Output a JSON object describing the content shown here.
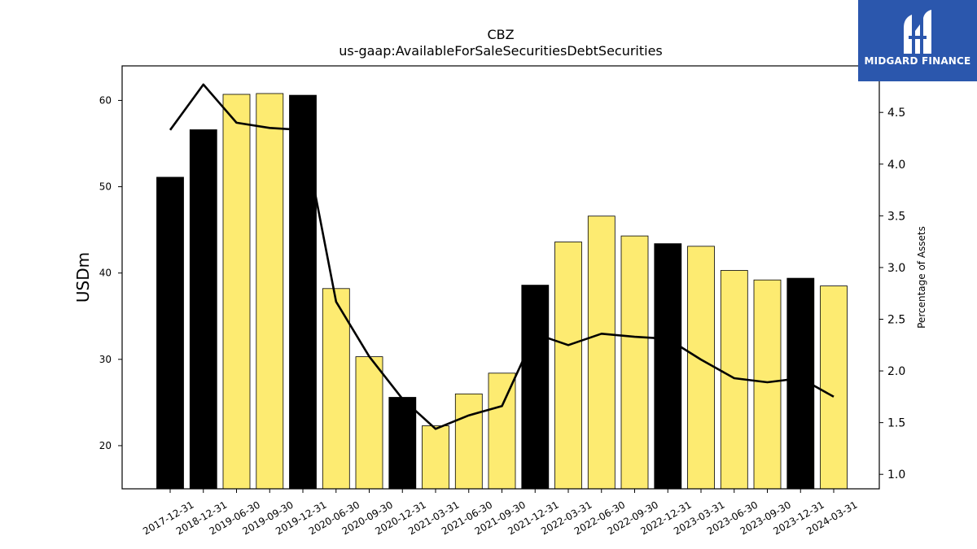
{
  "chart_data": {
    "type": "bar",
    "title": "CBZ",
    "subtitle": "us-gaap:AvailableForSaleSecuritiesDebtSecurities",
    "ylabel": "USDm",
    "y2label": "Percentage of Assets",
    "ylim": [
      15,
      64
    ],
    "y2lim": [
      0.86,
      4.95
    ],
    "yticks": [
      20,
      30,
      40,
      50,
      60
    ],
    "y2ticks": [
      1.0,
      1.5,
      2.0,
      2.5,
      3.0,
      3.5,
      4.0,
      4.5
    ],
    "categories": [
      "2017-12-31",
      "2018-12-31",
      "2019-06-30",
      "2019-09-30",
      "2019-12-31",
      "2020-06-30",
      "2020-09-30",
      "2020-12-31",
      "2021-03-31",
      "2021-06-30",
      "2021-09-30",
      "2021-12-31",
      "2022-03-31",
      "2022-06-30",
      "2022-09-30",
      "2022-12-31",
      "2023-03-31",
      "2023-06-30",
      "2023-09-30",
      "2023-12-31",
      "2024-03-31"
    ],
    "series": [
      {
        "type": "bar",
        "axis": "left",
        "values": [
          51.1,
          56.6,
          60.7,
          60.8,
          60.6,
          38.2,
          30.3,
          25.6,
          22.3,
          26.0,
          28.4,
          38.6,
          43.6,
          46.6,
          44.3,
          43.4,
          43.1,
          40.3,
          39.2,
          39.4,
          38.5
        ],
        "annual_flags": [
          true,
          true,
          false,
          false,
          true,
          false,
          false,
          true,
          false,
          false,
          false,
          true,
          false,
          false,
          false,
          true,
          false,
          false,
          false,
          true,
          false
        ]
      },
      {
        "type": "line",
        "axis": "right",
        "values": [
          4.33,
          4.77,
          4.4,
          4.35,
          4.33,
          2.67,
          2.14,
          1.73,
          1.44,
          1.57,
          1.66,
          2.36,
          2.25,
          2.36,
          2.33,
          2.31,
          2.11,
          1.93,
          1.89,
          1.93,
          1.75
        ]
      }
    ],
    "colors": {
      "annual_bar": "#000000",
      "quarter_bar": "#fdeb71",
      "line": "#000000"
    },
    "grid": false
  },
  "logo": {
    "text": "MIDGARD FINANCE",
    "background": "#2b57ad"
  }
}
